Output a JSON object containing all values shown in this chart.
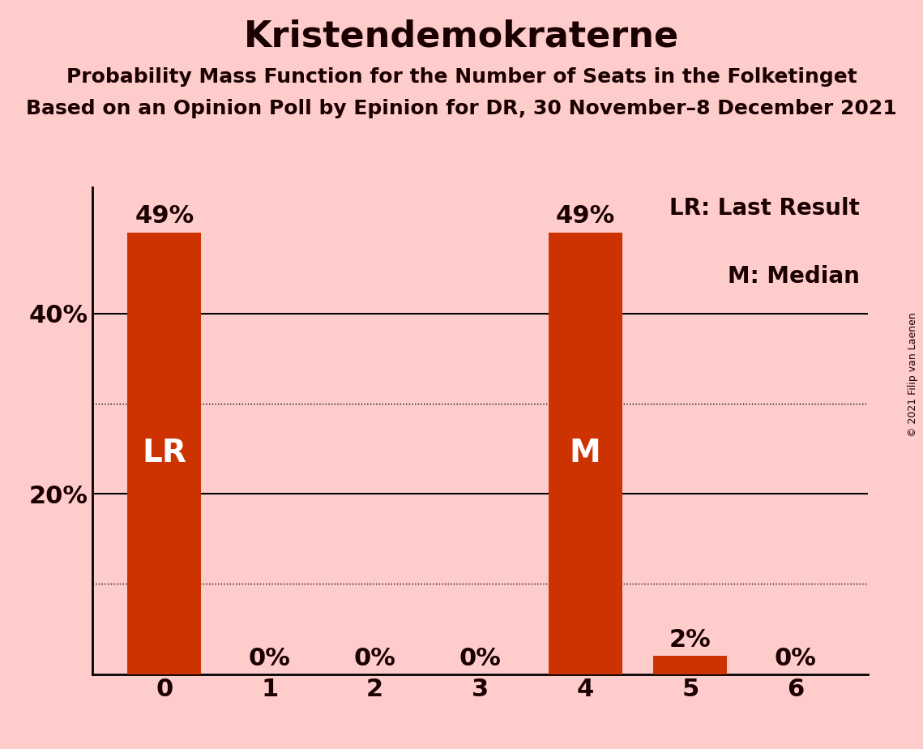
{
  "title": "Kristendemokraterne",
  "subtitle1": "Probability Mass Function for the Number of Seats in the Folketinget",
  "subtitle2": "Based on an Opinion Poll by Epinion for DR, 30 November–8 December 2021",
  "copyright": "© 2021 Filip van Laenen",
  "categories": [
    0,
    1,
    2,
    3,
    4,
    5,
    6
  ],
  "values": [
    49,
    0,
    0,
    0,
    49,
    2,
    0
  ],
  "bar_color": "#cc3300",
  "background_color": "#ffcccc",
  "label_color_inside": "#ffffff",
  "label_color_outside": "#1a0000",
  "lr_bar": 0,
  "median_bar": 4,
  "legend_lr": "LR: Last Result",
  "legend_m": "M: Median",
  "solid_gridlines": [
    20,
    40
  ],
  "dotted_gridlines": [
    10,
    30
  ],
  "ylim": [
    0,
    54
  ],
  "title_fontsize": 32,
  "subtitle_fontsize": 18,
  "bar_label_fontsize": 22,
  "axis_label_fontsize": 22,
  "inside_label_fontsize": 28,
  "legend_fontsize": 20
}
